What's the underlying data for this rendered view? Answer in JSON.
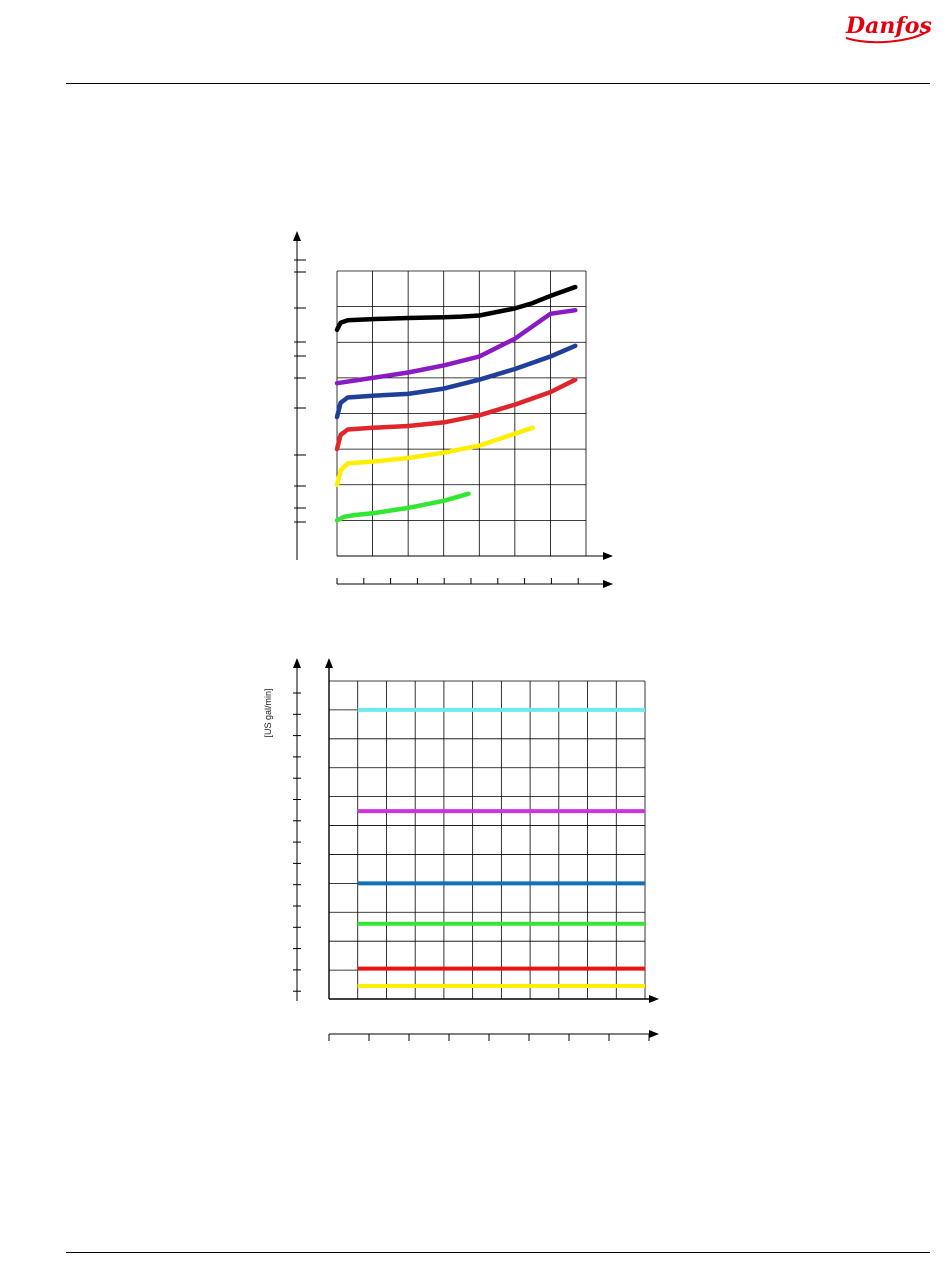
{
  "header": {
    "logo_text": "Danfoss",
    "brand_color": "#e2000f"
  },
  "chart_data": [
    {
      "type": "line",
      "title": "",
      "xlabel": "",
      "ylabel": "",
      "grid": true,
      "xlim": [
        0,
        7
      ],
      "ylim": [
        0,
        8
      ],
      "series": [
        {
          "color": "#000000",
          "x": [
            0,
            0.1,
            0.3,
            1,
            2,
            3,
            3.5,
            4,
            5,
            5.5,
            6,
            6.7
          ],
          "y": [
            6.35,
            6.55,
            6.62,
            6.65,
            6.68,
            6.7,
            6.72,
            6.75,
            6.95,
            7.1,
            7.3,
            7.55
          ]
        },
        {
          "color": "#8a1bc2",
          "x": [
            0,
            1,
            2,
            3,
            4,
            5,
            6,
            6.7
          ],
          "y": [
            4.85,
            5.0,
            5.15,
            5.35,
            5.6,
            6.1,
            6.8,
            6.9
          ]
        },
        {
          "color": "#1f3f9a",
          "x": [
            0,
            0.1,
            0.3,
            1,
            2,
            3,
            4,
            5,
            6,
            6.7
          ],
          "y": [
            3.9,
            4.3,
            4.45,
            4.5,
            4.55,
            4.7,
            4.95,
            5.25,
            5.6,
            5.9
          ]
        },
        {
          "color": "#e0262b",
          "x": [
            0,
            0.1,
            0.3,
            1,
            2,
            3,
            4,
            5,
            6,
            6.7
          ],
          "y": [
            3.0,
            3.4,
            3.55,
            3.6,
            3.65,
            3.75,
            3.95,
            4.25,
            4.6,
            4.95
          ]
        },
        {
          "color": "#ffee00",
          "x": [
            0,
            0.1,
            0.3,
            1,
            2,
            3,
            4,
            5.5
          ],
          "y": [
            2.0,
            2.4,
            2.6,
            2.65,
            2.75,
            2.9,
            3.1,
            3.6
          ]
        },
        {
          "color": "#33e633",
          "x": [
            0,
            0.2,
            0.5,
            1,
            2,
            3,
            3.7
          ],
          "y": [
            1.0,
            1.1,
            1.15,
            1.2,
            1.35,
            1.55,
            1.75
          ]
        }
      ]
    },
    {
      "type": "line",
      "title": "",
      "xlabel": "",
      "ylabel": "[US gal/min]",
      "grid": true,
      "xlim": [
        0,
        11
      ],
      "ylim": [
        0,
        11
      ],
      "series": [
        {
          "color": "#6fe8ee",
          "x": [
            1,
            11
          ],
          "y": [
            10.0,
            10.0
          ]
        },
        {
          "color": "#cf33d9",
          "x": [
            1,
            11
          ],
          "y": [
            6.5,
            6.5
          ]
        },
        {
          "color": "#1570b8",
          "x": [
            1,
            11
          ],
          "y": [
            4.0,
            4.0
          ]
        },
        {
          "color": "#33e633",
          "x": [
            1,
            11
          ],
          "y": [
            2.6,
            2.6
          ]
        },
        {
          "color": "#ee1111",
          "x": [
            1,
            11
          ],
          "y": [
            1.05,
            1.05
          ]
        },
        {
          "color": "#ffee00",
          "x": [
            1,
            11
          ],
          "y": [
            0.45,
            0.45
          ]
        }
      ]
    }
  ]
}
